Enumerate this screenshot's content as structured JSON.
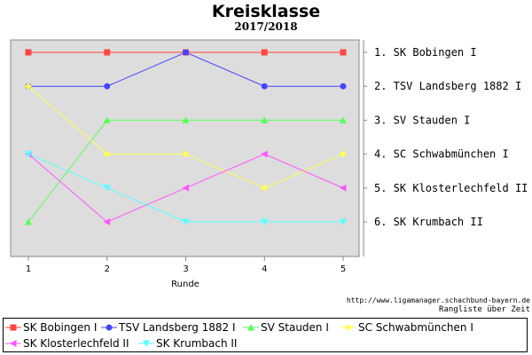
{
  "chart_data": {
    "type": "line",
    "title": "Kreisklasse",
    "subtitle": "2017/2018",
    "xlabel": "Runde",
    "x": [
      1,
      2,
      3,
      4,
      5
    ],
    "y_axis": "rank (1 = top), inverted",
    "ylim": [
      1,
      6
    ],
    "grid": false,
    "background": "#dddddd",
    "legend_position": "bottom",
    "series": [
      {
        "name": "SK Bobingen I",
        "color": "#ff4444",
        "marker": "square",
        "values": [
          1,
          1,
          1,
          1,
          1
        ]
      },
      {
        "name": "TSV Landsberg 1882 I",
        "color": "#4444ff",
        "marker": "circle",
        "values": [
          2,
          2,
          1,
          2,
          2
        ]
      },
      {
        "name": "SV Stauden I",
        "color": "#55ff55",
        "marker": "triangle-up",
        "values": [
          6,
          3,
          3,
          3,
          3
        ]
      },
      {
        "name": "SC Schwabmünchen I",
        "color": "#ffff55",
        "marker": "diamond",
        "values": [
          2,
          4,
          4,
          5,
          4
        ]
      },
      {
        "name": "SK Klosterlechfeld II",
        "color": "#ff55ff",
        "marker": "triangle-left",
        "values": [
          4,
          6,
          5,
          4,
          5
        ]
      },
      {
        "name": "SK Krumbach II",
        "color": "#55ffff",
        "marker": "triangle-down",
        "values": [
          4,
          5,
          6,
          6,
          6
        ]
      }
    ],
    "rank_labels": [
      "1. SK Bobingen I",
      "2. TSV Landsberg 1882 I",
      "3. SV Stauden I",
      "4. SC Schwabmünchen I",
      "5. SK Klosterlechfeld II",
      "6. SK Krumbach II"
    ]
  },
  "footer": {
    "source": "http://www.ligamanager.schachbund-bayern.de",
    "caption": "Rangliste über Zeit"
  }
}
